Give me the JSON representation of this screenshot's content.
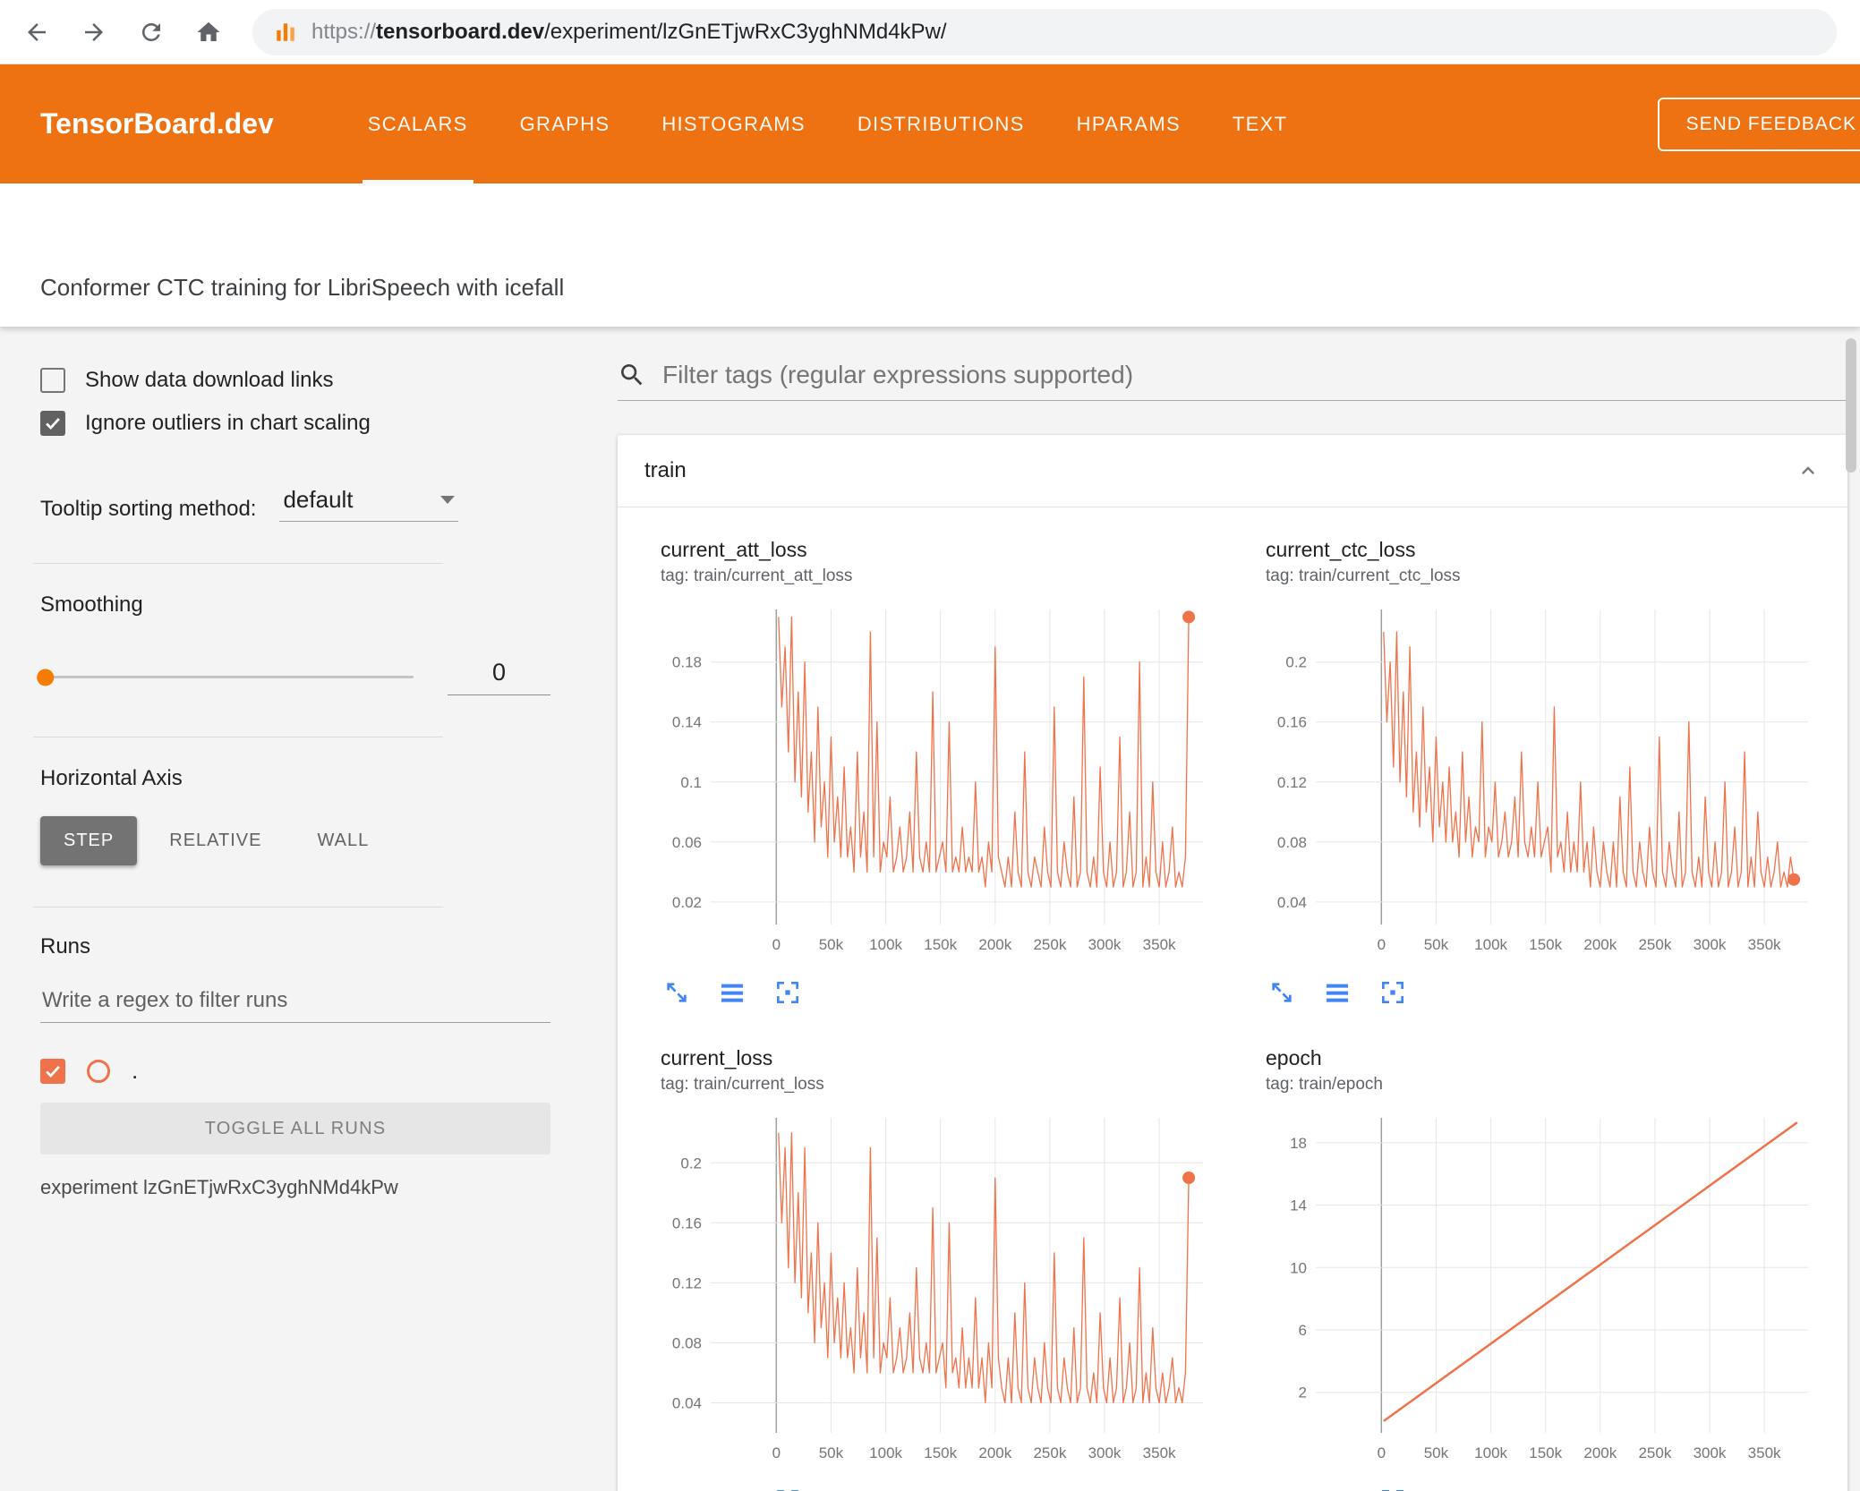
{
  "browser": {
    "url_scheme": "https://",
    "url_host": "tensorboard.dev",
    "url_path": "/experiment/lzGnETjwRxC3yghNMd4kPw/"
  },
  "header": {
    "brand": "TensorBoard.dev",
    "tabs": [
      {
        "label": "SCALARS",
        "active": true
      },
      {
        "label": "GRAPHS",
        "active": false
      },
      {
        "label": "HISTOGRAMS",
        "active": false
      },
      {
        "label": "DISTRIBUTIONS",
        "active": false
      },
      {
        "label": "HPARAMS",
        "active": false
      },
      {
        "label": "TEXT",
        "active": false
      }
    ],
    "feedback_button": "SEND FEEDBACK"
  },
  "experiment": {
    "title": "Conformer CTC training for LibriSpeech with icefall",
    "footer": "experiment lzGnETjwRxC3yghNMd4kPw"
  },
  "sidebar": {
    "show_data_download_links": {
      "label": "Show data download links",
      "checked": false
    },
    "ignore_outliers": {
      "label": "Ignore outliers in chart scaling",
      "checked": true
    },
    "tooltip_sorting": {
      "label": "Tooltip sorting method:",
      "value": "default"
    },
    "smoothing": {
      "label": "Smoothing",
      "value": "0"
    },
    "horizontal_axis": {
      "label": "Horizontal Axis",
      "options": [
        "STEP",
        "RELATIVE",
        "WALL"
      ],
      "selected": "STEP"
    },
    "runs": {
      "label": "Runs",
      "filter_placeholder": "Write a regex to filter runs",
      "run_checked": true,
      "run_name": ".",
      "toggle_all": "TOGGLE ALL RUNS"
    }
  },
  "main": {
    "filter_placeholder": "Filter tags (regular expressions supported)",
    "group": "train"
  },
  "icons": {
    "back": "arrow-left",
    "forward": "arrow-right",
    "reload": "circular-arrow",
    "home": "house",
    "favicon": "tensorboard-orange-bars",
    "search": "magnifier",
    "dropdown": "caret-down",
    "collapse_section": "chevron-up",
    "chart_toolbar": [
      "expand-arrows",
      "log-scale-lines",
      "fit-domain-frame"
    ]
  },
  "colors": {
    "header_bg": "#ee7211",
    "accent": "#f0724a",
    "icon_blue": "#4285f4",
    "slider_thumb": "#f57c00",
    "run_color": "#f0724a"
  },
  "chart_data": [
    {
      "type": "line",
      "title": "current_att_loss",
      "tag": "tag: train/current_att_loss",
      "color": "#f0724a",
      "stroke_width": 1.3,
      "end_dot": true,
      "grid": true,
      "xlim": [
        -60000,
        390000
      ],
      "ylim": [
        0.005,
        0.215
      ],
      "x_tick_values": [
        0,
        50000,
        100000,
        150000,
        200000,
        250000,
        300000,
        350000
      ],
      "x_tick_labels": [
        "0",
        "50k",
        "100k",
        "150k",
        "200k",
        "250k",
        "300k",
        "350k"
      ],
      "y_tick_values": [
        0.02,
        0.06,
        0.1,
        0.14,
        0.18
      ],
      "y_tick_labels": [
        "0.02",
        "0.06",
        "0.1",
        "0.14",
        "0.18"
      ],
      "x_start": 2000,
      "x_step": 3000,
      "y": [
        0.21,
        0.15,
        0.19,
        0.12,
        0.21,
        0.1,
        0.16,
        0.09,
        0.18,
        0.08,
        0.12,
        0.06,
        0.15,
        0.07,
        0.1,
        0.05,
        0.13,
        0.06,
        0.09,
        0.05,
        0.11,
        0.05,
        0.07,
        0.04,
        0.12,
        0.05,
        0.08,
        0.04,
        0.2,
        0.05,
        0.14,
        0.04,
        0.06,
        0.05,
        0.09,
        0.04,
        0.05,
        0.07,
        0.04,
        0.05,
        0.08,
        0.04,
        0.12,
        0.05,
        0.04,
        0.06,
        0.04,
        0.16,
        0.04,
        0.05,
        0.06,
        0.04,
        0.14,
        0.04,
        0.05,
        0.04,
        0.07,
        0.04,
        0.05,
        0.04,
        0.1,
        0.04,
        0.05,
        0.03,
        0.06,
        0.04,
        0.19,
        0.05,
        0.04,
        0.03,
        0.05,
        0.03,
        0.08,
        0.04,
        0.03,
        0.12,
        0.04,
        0.03,
        0.05,
        0.04,
        0.03,
        0.07,
        0.04,
        0.03,
        0.15,
        0.04,
        0.03,
        0.06,
        0.04,
        0.03,
        0.09,
        0.03,
        0.04,
        0.17,
        0.04,
        0.03,
        0.05,
        0.03,
        0.11,
        0.04,
        0.03,
        0.06,
        0.03,
        0.04,
        0.13,
        0.03,
        0.04,
        0.08,
        0.03,
        0.04,
        0.18,
        0.03,
        0.05,
        0.03,
        0.1,
        0.04,
        0.03,
        0.06,
        0.03,
        0.04,
        0.07,
        0.03,
        0.04,
        0.03,
        0.05,
        0.21
      ]
    },
    {
      "type": "line",
      "title": "current_ctc_loss",
      "tag": "tag: train/current_ctc_loss",
      "color": "#f0724a",
      "stroke_width": 1.3,
      "end_dot": true,
      "grid": true,
      "xlim": [
        -60000,
        390000
      ],
      "ylim": [
        0.025,
        0.235
      ],
      "x_tick_values": [
        0,
        50000,
        100000,
        150000,
        200000,
        250000,
        300000,
        350000
      ],
      "x_tick_labels": [
        "0",
        "50k",
        "100k",
        "150k",
        "200k",
        "250k",
        "300k",
        "350k"
      ],
      "y_tick_values": [
        0.04,
        0.08,
        0.12,
        0.16,
        0.2
      ],
      "y_tick_labels": [
        "0.04",
        "0.08",
        "0.12",
        "0.16",
        "0.2"
      ],
      "x_start": 2000,
      "x_step": 3000,
      "y": [
        0.22,
        0.16,
        0.2,
        0.13,
        0.22,
        0.12,
        0.18,
        0.11,
        0.21,
        0.1,
        0.14,
        0.09,
        0.17,
        0.1,
        0.13,
        0.08,
        0.15,
        0.09,
        0.12,
        0.08,
        0.13,
        0.08,
        0.1,
        0.07,
        0.14,
        0.08,
        0.11,
        0.07,
        0.09,
        0.08,
        0.16,
        0.07,
        0.09,
        0.08,
        0.12,
        0.07,
        0.08,
        0.1,
        0.07,
        0.08,
        0.11,
        0.07,
        0.14,
        0.08,
        0.07,
        0.09,
        0.07,
        0.12,
        0.07,
        0.08,
        0.09,
        0.06,
        0.17,
        0.07,
        0.08,
        0.06,
        0.1,
        0.06,
        0.08,
        0.06,
        0.12,
        0.06,
        0.08,
        0.05,
        0.09,
        0.06,
        0.05,
        0.08,
        0.06,
        0.05,
        0.08,
        0.05,
        0.11,
        0.06,
        0.05,
        0.13,
        0.06,
        0.05,
        0.08,
        0.06,
        0.05,
        0.09,
        0.06,
        0.05,
        0.15,
        0.06,
        0.05,
        0.08,
        0.06,
        0.05,
        0.1,
        0.05,
        0.06,
        0.16,
        0.06,
        0.05,
        0.07,
        0.05,
        0.11,
        0.06,
        0.05,
        0.08,
        0.05,
        0.06,
        0.12,
        0.05,
        0.06,
        0.09,
        0.05,
        0.06,
        0.14,
        0.05,
        0.07,
        0.05,
        0.1,
        0.06,
        0.05,
        0.07,
        0.05,
        0.06,
        0.08,
        0.05,
        0.06,
        0.05,
        0.07,
        0.055
      ]
    },
    {
      "type": "line",
      "title": "current_loss",
      "tag": "tag: train/current_loss",
      "color": "#f0724a",
      "stroke_width": 1.3,
      "end_dot": true,
      "grid": true,
      "xlim": [
        -60000,
        390000
      ],
      "ylim": [
        0.02,
        0.23
      ],
      "x_tick_values": [
        0,
        50000,
        100000,
        150000,
        200000,
        250000,
        300000,
        350000
      ],
      "x_tick_labels": [
        "0",
        "50k",
        "100k",
        "150k",
        "200k",
        "250k",
        "300k",
        "350k"
      ],
      "y_tick_values": [
        0.04,
        0.08,
        0.12,
        0.16,
        0.2
      ],
      "y_tick_labels": [
        "0.04",
        "0.08",
        "0.12",
        "0.16",
        "0.2"
      ],
      "x_start": 2000,
      "x_step": 3000,
      "y": [
        0.22,
        0.16,
        0.21,
        0.13,
        0.22,
        0.12,
        0.18,
        0.11,
        0.21,
        0.1,
        0.14,
        0.08,
        0.16,
        0.09,
        0.12,
        0.07,
        0.14,
        0.08,
        0.11,
        0.07,
        0.12,
        0.07,
        0.09,
        0.06,
        0.13,
        0.07,
        0.1,
        0.06,
        0.21,
        0.07,
        0.15,
        0.06,
        0.08,
        0.07,
        0.11,
        0.06,
        0.07,
        0.09,
        0.06,
        0.07,
        0.1,
        0.06,
        0.13,
        0.07,
        0.06,
        0.08,
        0.06,
        0.17,
        0.06,
        0.07,
        0.08,
        0.05,
        0.16,
        0.06,
        0.07,
        0.05,
        0.09,
        0.05,
        0.07,
        0.05,
        0.11,
        0.05,
        0.07,
        0.04,
        0.08,
        0.05,
        0.19,
        0.07,
        0.05,
        0.04,
        0.07,
        0.04,
        0.1,
        0.05,
        0.04,
        0.12,
        0.05,
        0.04,
        0.07,
        0.05,
        0.04,
        0.08,
        0.05,
        0.04,
        0.14,
        0.05,
        0.04,
        0.07,
        0.05,
        0.04,
        0.09,
        0.04,
        0.05,
        0.15,
        0.05,
        0.04,
        0.06,
        0.04,
        0.1,
        0.05,
        0.04,
        0.07,
        0.04,
        0.05,
        0.11,
        0.04,
        0.05,
        0.08,
        0.04,
        0.05,
        0.13,
        0.04,
        0.06,
        0.04,
        0.09,
        0.05,
        0.04,
        0.06,
        0.04,
        0.05,
        0.07,
        0.04,
        0.05,
        0.04,
        0.06,
        0.19
      ]
    },
    {
      "type": "line",
      "title": "epoch",
      "tag": "tag: train/epoch",
      "color": "#f0724a",
      "stroke_width": 2.5,
      "end_dot": false,
      "grid": true,
      "xlim": [
        -60000,
        390000
      ],
      "ylim": [
        -0.6,
        19.6
      ],
      "x_tick_values": [
        0,
        50000,
        100000,
        150000,
        200000,
        250000,
        300000,
        350000
      ],
      "x_tick_labels": [
        "0",
        "50k",
        "100k",
        "150k",
        "200k",
        "250k",
        "300k",
        "350k"
      ],
      "y_tick_values": [
        2,
        6,
        10,
        14,
        18
      ],
      "y_tick_labels": [
        "2",
        "6",
        "10",
        "14",
        "18"
      ],
      "points": [
        [
          2000,
          0.15
        ],
        [
          380000,
          19.3
        ]
      ]
    }
  ]
}
